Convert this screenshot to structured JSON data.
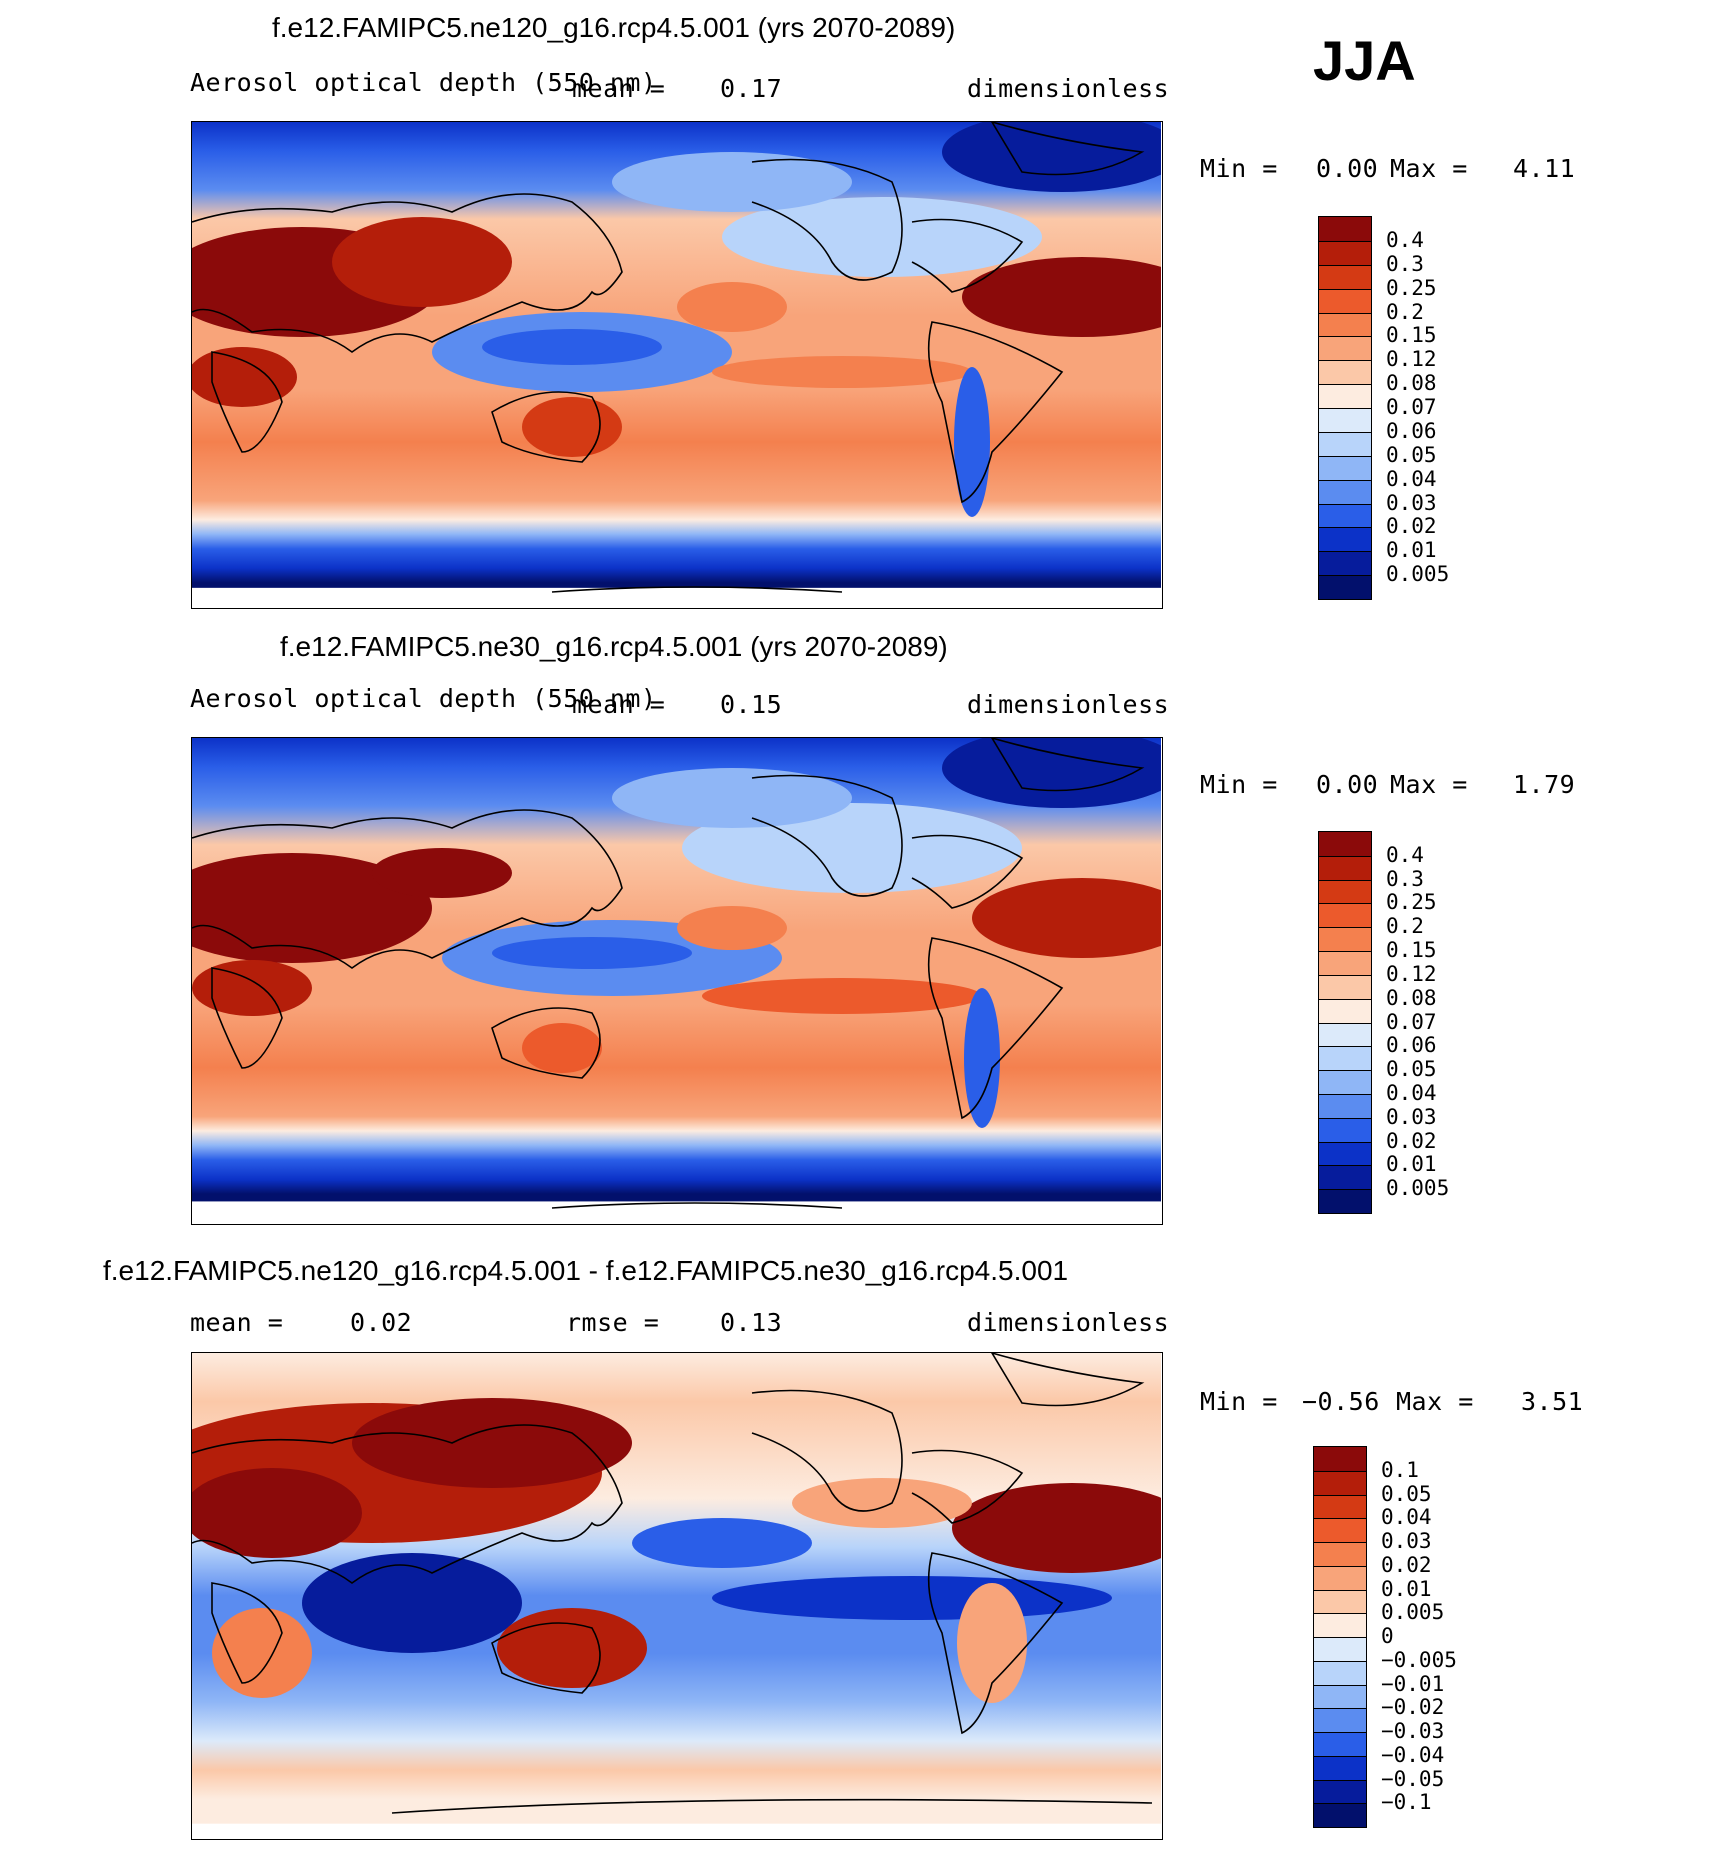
{
  "season": "JJA",
  "panels": [
    {
      "title": "f.e12.FAMIPC5.ne120_g16.rcp4.5.001 (yrs 2070-2089)",
      "variable": "Aerosol optical depth (550 nm)",
      "mean_label": "mean =",
      "mean_value": "0.17",
      "units": "dimensionless",
      "min_label": "Min =",
      "min_value": "0.00",
      "max_label": "Max =",
      "max_value": "4.11",
      "colorbar_levels": [
        "0.4",
        "0.3",
        "0.25",
        "0.2",
        "0.15",
        "0.12",
        "0.08",
        "0.07",
        "0.06",
        "0.05",
        "0.04",
        "0.03",
        "0.02",
        "0.01",
        "0.005"
      ],
      "colorbar_colors": [
        "#8b0a0a",
        "#b41e0a",
        "#d43a14",
        "#ec5a2c",
        "#f4804e",
        "#f8a47a",
        "#fbc8a8",
        "#fdece0",
        "#dceafa",
        "#b8d4fa",
        "#8fb6f6",
        "#5b8cf0",
        "#2a5ee8",
        "#0c32c8",
        "#061c9c",
        "#02106c"
      ]
    },
    {
      "title": "f.e12.FAMIPC5.ne30_g16.rcp4.5.001 (yrs 2070-2089)",
      "variable": "Aerosol optical depth (550 nm)",
      "mean_label": "mean =",
      "mean_value": "0.15",
      "units": "dimensionless",
      "min_label": "Min =",
      "min_value": "0.00",
      "max_label": "Max =",
      "max_value": "1.79",
      "colorbar_levels": [
        "0.4",
        "0.3",
        "0.25",
        "0.2",
        "0.15",
        "0.12",
        "0.08",
        "0.07",
        "0.06",
        "0.05",
        "0.04",
        "0.03",
        "0.02",
        "0.01",
        "0.005"
      ],
      "colorbar_colors": [
        "#8b0a0a",
        "#b41e0a",
        "#d43a14",
        "#ec5a2c",
        "#f4804e",
        "#f8a47a",
        "#fbc8a8",
        "#fdece0",
        "#dceafa",
        "#b8d4fa",
        "#8fb6f6",
        "#5b8cf0",
        "#2a5ee8",
        "#0c32c8",
        "#061c9c",
        "#02106c"
      ]
    },
    {
      "title": "f.e12.FAMIPC5.ne120_g16.rcp4.5.001 - f.e12.FAMIPC5.ne30_g16.rcp4.5.001",
      "mean_label": "mean =",
      "mean_value": "0.02",
      "rmse_label": "rmse =",
      "rmse_value": "0.13",
      "units": "dimensionless",
      "min_label": "Min =",
      "min_value": "−0.56",
      "max_label": "Max =",
      "max_value": "3.51",
      "colorbar_levels": [
        "0.1",
        "0.05",
        "0.04",
        "0.03",
        "0.02",
        "0.01",
        "0.005",
        "0",
        "−0.005",
        "−0.01",
        "−0.02",
        "−0.03",
        "−0.04",
        "−0.05",
        "−0.1"
      ],
      "colorbar_colors": [
        "#8b0a0a",
        "#b41e0a",
        "#d43a14",
        "#ec5a2c",
        "#f4804e",
        "#f8a47a",
        "#fbc8a8",
        "#fdece0",
        "#dceafa",
        "#b8d4fa",
        "#8fb6f6",
        "#5b8cf0",
        "#2a5ee8",
        "#0c32c8",
        "#061c9c",
        "#02106c"
      ]
    }
  ],
  "colors": {
    "dark_red": "#8b0a0a",
    "red": "#d43a14",
    "orange": "#f4804e",
    "salmon": "#f8a47a",
    "pale": "#fdece0",
    "light_blue": "#b8d4fa",
    "blue": "#2a5ee8",
    "navy": "#02106c",
    "coast": "#000000"
  }
}
